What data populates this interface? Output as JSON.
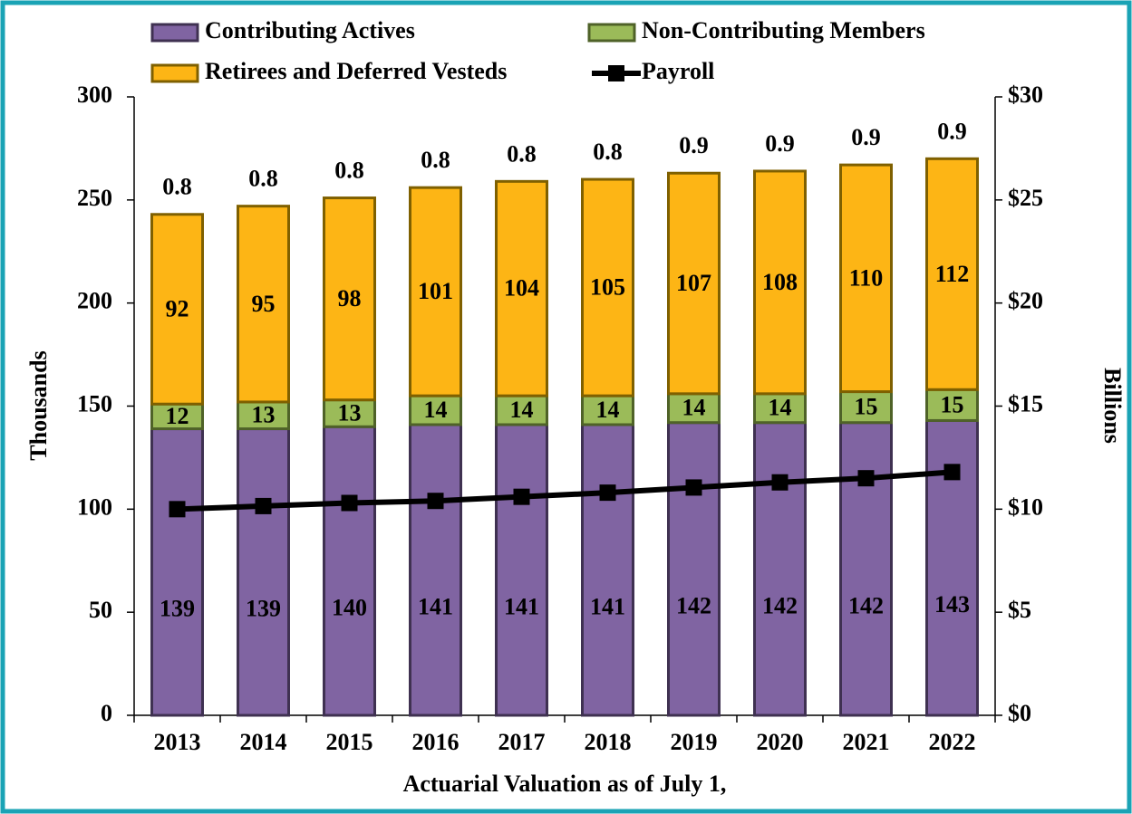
{
  "chart_data": {
    "type": "bar",
    "stacked": true,
    "x_label": "Actuarial Valuation as of July 1,",
    "y_label": "Thousands",
    "y2_label": "Billions",
    "categories": [
      "2013",
      "2014",
      "2015",
      "2016",
      "2017",
      "2018",
      "2019",
      "2020",
      "2021",
      "2022"
    ],
    "series": [
      {
        "name": "Contributing Actives",
        "color": "#8064a2",
        "values": [
          139,
          139,
          140,
          141,
          141,
          141,
          142,
          142,
          142,
          143
        ]
      },
      {
        "name": "Non-Contributing Members",
        "color": "#9bbb59",
        "values": [
          12,
          13,
          13,
          14,
          14,
          14,
          14,
          14,
          15,
          15
        ]
      },
      {
        "name": "Retirees and Deferred Vesteds",
        "color": "#fdb515",
        "values": [
          92,
          95,
          98,
          101,
          104,
          105,
          107,
          108,
          110,
          112
        ]
      },
      {
        "name": "Payroll",
        "type": "line",
        "axis": "y2",
        "color": "#000000",
        "values": [
          10.0,
          10.15,
          10.3,
          10.4,
          10.6,
          10.8,
          11.05,
          11.3,
          11.5,
          11.8
        ]
      }
    ],
    "top_labels": [
      0.8,
      0.8,
      0.8,
      0.8,
      0.8,
      0.8,
      0.9,
      0.9,
      0.9,
      0.9
    ],
    "ylim": [
      0,
      300
    ],
    "yticks": [
      0,
      50,
      100,
      150,
      200,
      250,
      300
    ],
    "y2lim": [
      0,
      30
    ],
    "y2ticks": [
      {
        "value": 0,
        "label": "$0"
      },
      {
        "value": 5,
        "label": "$5"
      },
      {
        "value": 10,
        "label": "$10"
      },
      {
        "value": 15,
        "label": "$15"
      },
      {
        "value": 20,
        "label": "$20"
      },
      {
        "value": 25,
        "label": "$25"
      },
      {
        "value": 30,
        "label": "$30"
      }
    ],
    "grid": false
  }
}
